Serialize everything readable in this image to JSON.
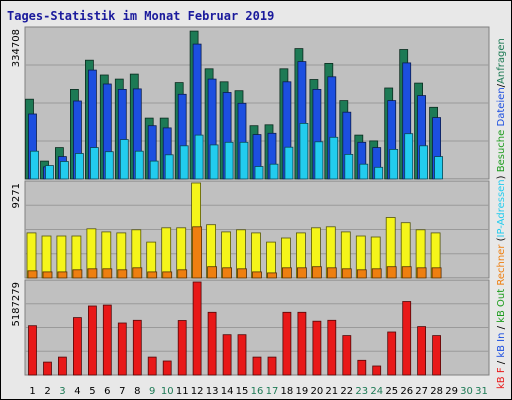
{
  "title": "Tages-Statistik im Monat Februar 2019",
  "chart_data": [
    {
      "type": "bar",
      "panel": "top",
      "ymax_label": "334708",
      "ylim": [
        0,
        334708
      ],
      "categories": [
        "1",
        "2",
        "3",
        "4",
        "5",
        "6",
        "7",
        "8",
        "9",
        "10",
        "11",
        "12",
        "13",
        "14",
        "15",
        "16",
        "17",
        "18",
        "19",
        "20",
        "21",
        "22",
        "23",
        "24",
        "25",
        "26",
        "27",
        "28",
        "29",
        "30",
        "31"
      ],
      "series": [
        {
          "name": "Anfragen",
          "color": "#1d7a55",
          "values": [
            178000,
            40000,
            70000,
            200000,
            265000,
            232000,
            223000,
            234000,
            136000,
            136000,
            215000,
            330000,
            246000,
            217000,
            197000,
            119000,
            121000,
            246000,
            291000,
            222000,
            258000,
            175000,
            98000,
            85000,
            203000,
            289000,
            214000,
            160000,
            0,
            0,
            0
          ]
        },
        {
          "name": "Dateien",
          "color": "#1c4fe0",
          "values": [
            145000,
            27000,
            50000,
            174000,
            243000,
            212000,
            200000,
            201000,
            119000,
            114000,
            189000,
            301000,
            223000,
            193000,
            169000,
            99000,
            102000,
            217000,
            262000,
            200000,
            228000,
            149000,
            82000,
            70000,
            175000,
            259000,
            186000,
            137000,
            0,
            0,
            0
          ]
        },
        {
          "name": "Besuche (IP-Adressen)",
          "color": "#22ccee",
          "values": [
            62000,
            30000,
            39000,
            57000,
            70000,
            61000,
            88000,
            62000,
            40000,
            54000,
            74000,
            98000,
            76000,
            82000,
            82000,
            28000,
            33000,
            71000,
            124000,
            83000,
            93000,
            55000,
            33000,
            26000,
            66000,
            101000,
            74000,
            50000,
            0,
            0,
            0
          ]
        }
      ]
    },
    {
      "type": "bar",
      "panel": "middle",
      "ymax_label": "9271",
      "ylim": [
        0,
        9271
      ],
      "categories": [
        "1",
        "2",
        "3",
        "4",
        "5",
        "6",
        "7",
        "8",
        "9",
        "10",
        "11",
        "12",
        "13",
        "14",
        "15",
        "16",
        "17",
        "18",
        "19",
        "20",
        "21",
        "22",
        "23",
        "24",
        "25",
        "26",
        "27",
        "28",
        "29",
        "30",
        "31"
      ],
      "series": [
        {
          "name": "Rechner",
          "color": "#f5f51a",
          "values": [
            4400,
            4100,
            4100,
            4100,
            4800,
            4500,
            4400,
            4700,
            3500,
            4900,
            4900,
            9271,
            5200,
            4500,
            4700,
            4400,
            3500,
            3900,
            4400,
            4900,
            5000,
            4500,
            4100,
            4000,
            5900,
            5400,
            4700,
            4400,
            0,
            0,
            0
          ]
        },
        {
          "name": "IP-Adressen (Besuche)",
          "color": "#ee7f10",
          "values": [
            700,
            600,
            600,
            800,
            900,
            900,
            800,
            1000,
            600,
            600,
            800,
            5000,
            1100,
            1000,
            900,
            600,
            500,
            1000,
            1000,
            1100,
            1000,
            900,
            800,
            900,
            1100,
            1100,
            1000,
            1000,
            0,
            0,
            0
          ]
        }
      ]
    },
    {
      "type": "bar",
      "panel": "bottom",
      "ymax_label": "5187279",
      "ylim": [
        0,
        5187279
      ],
      "categories": [
        "1",
        "2",
        "3",
        "4",
        "5",
        "6",
        "7",
        "8",
        "9",
        "10",
        "11",
        "12",
        "13",
        "14",
        "15",
        "16",
        "17",
        "18",
        "19",
        "20",
        "21",
        "22",
        "23",
        "24",
        "25",
        "26",
        "27",
        "28",
        "29",
        "30",
        "31"
      ],
      "series": [
        {
          "name": "kB F",
          "color": "#e81818",
          "values": [
            2750000,
            720000,
            1000000,
            3200000,
            3850000,
            3900000,
            2900000,
            3050000,
            1000000,
            780000,
            3040000,
            5187279,
            3500000,
            2250000,
            2250000,
            1000000,
            1000000,
            3500000,
            3500000,
            3000000,
            3050000,
            2200000,
            820000,
            500000,
            2400000,
            4100000,
            2700000,
            2200000,
            0,
            0,
            0
          ]
        }
      ]
    }
  ],
  "xaxis": {
    "labels": [
      "1",
      "2",
      "3",
      "4",
      "5",
      "6",
      "7",
      "8",
      "9",
      "10",
      "11",
      "12",
      "13",
      "14",
      "15",
      "16",
      "17",
      "18",
      "19",
      "20",
      "21",
      "22",
      "23",
      "24",
      "25",
      "26",
      "27",
      "28",
      "29",
      "30",
      "31"
    ],
    "colors": [
      "#000000",
      "#000000",
      "#1d7a55",
      "#000000",
      "#000000",
      "#000000",
      "#000000",
      "#000000",
      "#1d7a55",
      "#1d7a55",
      "#000000",
      "#000000",
      "#000000",
      "#000000",
      "#000000",
      "#1d7a55",
      "#1d7a55",
      "#000000",
      "#000000",
      "#000000",
      "#000000",
      "#000000",
      "#1d7a55",
      "#1d7a55",
      "#000000",
      "#000000",
      "#000000",
      "#000000",
      "#000000",
      "#1d7a55",
      "#1d7a55"
    ]
  },
  "legend": [
    {
      "text": "kB F",
      "color": "#e81818"
    },
    {
      "text": " / ",
      "color": "#000000"
    },
    {
      "text": "kB In",
      "color": "#1c4fe0"
    },
    {
      "text": " / ",
      "color": "#000000"
    },
    {
      "text": "kB Out",
      "color": "#1d9c1d"
    },
    {
      "text": " ",
      "color": "#000000"
    },
    {
      "text": "Rechner",
      "color": "#ee7f10"
    },
    {
      "text": " (",
      "color": "#000000"
    },
    {
      "text": "IP-Adressen",
      "color": "#22ccee"
    },
    {
      "text": ") ",
      "color": "#000000"
    },
    {
      "text": "Besuche",
      "color": "#1d9c1d"
    },
    {
      "text": " ",
      "color": "#000000"
    },
    {
      "text": "Dateien",
      "color": "#1c4fe0"
    },
    {
      "text": "/",
      "color": "#000000"
    },
    {
      "text": "Anfragen",
      "color": "#1d7a55"
    }
  ]
}
